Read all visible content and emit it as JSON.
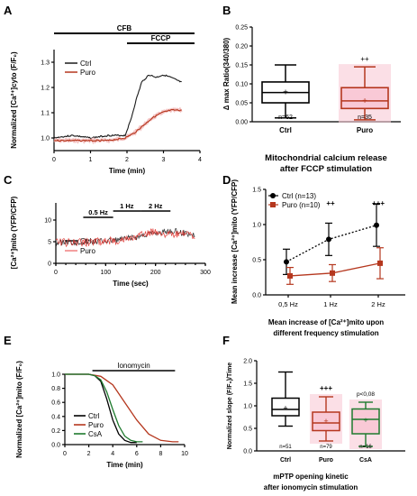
{
  "panels": {
    "A": "A",
    "B": "B",
    "C": "C",
    "D": "D",
    "E": "E",
    "F": "F"
  },
  "colors": {
    "ctrl": "#1a1a1a",
    "puro": "#b5371e",
    "puro_light": "#f4c4c4",
    "csa": "#1e7a2e",
    "pink": "#f9c9d6",
    "fade": "#f08080"
  },
  "captions": {
    "B": [
      "Mitochondrial calcium release",
      "after FCCP stimulation"
    ],
    "D": [
      "Mean increase of [Ca²⁺]mito upon",
      "different frequency stimulation"
    ],
    "F": [
      "mPTP opening kinetic",
      "after ionomycin stimulation"
    ]
  },
  "chart_data": [
    {
      "panel": "A",
      "type": "line",
      "xlabel": "Time (min)",
      "ylabel": "Normalized [Ca²⁺]cyto (F/F₀)",
      "xlim": [
        0,
        4
      ],
      "ylim": [
        0.95,
        1.35
      ],
      "xticks": [
        "0",
        "1",
        "2",
        "3",
        "4"
      ],
      "yticks": [
        "1.0",
        "1.1",
        "1.2",
        "1.3"
      ],
      "bars": [
        {
          "label": "CFB",
          "x": [
            0,
            3.85
          ]
        },
        {
          "label": "FCCP",
          "x": [
            2.0,
            3.85
          ]
        }
      ],
      "series": [
        {
          "name": "Ctrl",
          "x": [
            0,
            0.5,
            1,
            1.5,
            1.95,
            2.1,
            2.25,
            2.4,
            2.6,
            2.8,
            3,
            3.2,
            3.5
          ],
          "y": [
            1.0,
            1.01,
            1.0,
            1.01,
            1.01,
            1.07,
            1.15,
            1.22,
            1.25,
            1.24,
            1.25,
            1.24,
            1.22
          ]
        },
        {
          "name": "Puro",
          "x": [
            0,
            0.5,
            1,
            1.5,
            1.95,
            2.2,
            2.45,
            2.7,
            2.95,
            3.2,
            3.5
          ],
          "y": [
            0.99,
            0.99,
            0.99,
            0.99,
            1.0,
            1.02,
            1.05,
            1.08,
            1.1,
            1.11,
            1.11
          ]
        }
      ]
    },
    {
      "panel": "B",
      "type": "box",
      "ylabel": "Δ max Ratio(340/380)",
      "ylim": [
        0,
        0.25
      ],
      "yticks": [
        "0.00",
        "0.05",
        "0.10",
        "0.15",
        "0.20",
        "0.25"
      ],
      "categories": [
        "Ctrl",
        "Puro"
      ],
      "n": [
        "n=62",
        "n=35"
      ],
      "sig": [
        "",
        "++"
      ],
      "boxes": [
        {
          "min": 0.01,
          "q1": 0.05,
          "median": 0.077,
          "q3": 0.105,
          "max": 0.15,
          "mean": 0.077
        },
        {
          "min": 0.005,
          "q1": 0.035,
          "median": 0.055,
          "q3": 0.09,
          "max": 0.145,
          "mean": 0.055
        }
      ]
    },
    {
      "panel": "C",
      "type": "line",
      "xlabel": "Time (sec)",
      "ylabel": "[Ca²⁺]mito (YFP/CFP)",
      "xlim": [
        0,
        300
      ],
      "ylim": [
        0,
        15
      ],
      "xticks": [
        "0",
        "100",
        "200",
        "300"
      ],
      "yticks": [
        "0",
        "5",
        "10"
      ],
      "bars": [
        {
          "label": "0.5 Hz",
          "x": [
            55,
            115
          ]
        },
        {
          "label": "1 Hz",
          "x": [
            115,
            170
          ]
        },
        {
          "label": "2 Hz",
          "x": [
            170,
            230
          ]
        }
      ],
      "series": [
        {
          "name": "Ctrl",
          "x": [
            0,
            50,
            100,
            130,
            160,
            185,
            200,
            230,
            260,
            280
          ],
          "y": [
            4.8,
            4.9,
            5.2,
            5.5,
            6,
            6.8,
            7,
            7.5,
            7,
            6.5
          ]
        },
        {
          "name": "Puro",
          "x": [
            0,
            50,
            100,
            130,
            160,
            185,
            200,
            230,
            260,
            280
          ],
          "y": [
            4.8,
            4.8,
            5.1,
            5.4,
            6,
            7,
            7.5,
            6.5,
            6.8,
            6.3
          ]
        }
      ]
    },
    {
      "panel": "D",
      "type": "line",
      "xlabel": "",
      "ylabel": "Mean increase [Ca²⁺]mito (YFP/CFP)",
      "categories": [
        "0,5 Hz",
        "1 Hz",
        "2 Hz"
      ],
      "ylim": [
        0,
        1.5
      ],
      "yticks": [
        "0.0",
        "0.5",
        "1.0",
        "1.5"
      ],
      "sig": [
        "",
        "++",
        "+++"
      ],
      "series": [
        {
          "name": "Ctrl (n=13)",
          "values": [
            0.47,
            0.79,
            0.99
          ],
          "err": [
            0.18,
            0.23,
            0.3
          ]
        },
        {
          "name": "Puro (n=10)",
          "values": [
            0.27,
            0.31,
            0.45
          ],
          "err": [
            0.12,
            0.12,
            0.22
          ]
        }
      ]
    },
    {
      "panel": "E",
      "type": "line",
      "xlabel": "Time (min)",
      "ylabel": "Normalized [Ca²⁺]mito (F/F₀)",
      "xlim": [
        0,
        10
      ],
      "ylim": [
        0,
        1.0
      ],
      "xticks": [
        "0",
        "2",
        "4",
        "6",
        "8",
        "10"
      ],
      "yticks": [
        "0.0",
        "0.2",
        "0.4",
        "0.6",
        "0.8",
        "1.0"
      ],
      "bars": [
        {
          "label": "Ionomycin",
          "x": [
            2.3,
            9.2
          ]
        }
      ],
      "series": [
        {
          "name": "Ctrl",
          "x": [
            0,
            2,
            2.5,
            3,
            3.5,
            4,
            4.5,
            5,
            5.5,
            6
          ],
          "y": [
            1.0,
            1.0,
            0.98,
            0.9,
            0.65,
            0.35,
            0.15,
            0.06,
            0.03,
            0.03
          ]
        },
        {
          "name": "Puro",
          "x": [
            0,
            2,
            3,
            4,
            5,
            6,
            7,
            8,
            9,
            9.5
          ],
          "y": [
            1.0,
            1.0,
            0.97,
            0.85,
            0.6,
            0.35,
            0.15,
            0.06,
            0.04,
            0.04
          ]
        },
        {
          "name": "CsA",
          "x": [
            0,
            2,
            2.5,
            3,
            3.5,
            4,
            4.5,
            5,
            5.5,
            6,
            6.5
          ],
          "y": [
            1.0,
            1.0,
            0.98,
            0.92,
            0.75,
            0.5,
            0.27,
            0.12,
            0.06,
            0.04,
            0.04
          ]
        }
      ]
    },
    {
      "panel": "F",
      "type": "box",
      "ylabel": "Normalized slope (F/F₀)/Time",
      "ylim": [
        0,
        2.0
      ],
      "yticks": [
        "0.0",
        "0.5",
        "1.0",
        "1.5",
        "2.0"
      ],
      "categories": [
        "Ctrl",
        "Puro",
        "CsA"
      ],
      "n": [
        "n=51",
        "n=79",
        "n=16"
      ],
      "sig": [
        "",
        "+++",
        "p<0,08"
      ],
      "boxes": [
        {
          "min": 0.55,
          "q1": 0.78,
          "median": 0.92,
          "q3": 1.17,
          "max": 1.75,
          "mean": 0.95
        },
        {
          "min": 0.22,
          "q1": 0.45,
          "median": 0.62,
          "q3": 0.86,
          "max": 1.2,
          "mean": 0.66
        },
        {
          "min": 0.1,
          "q1": 0.38,
          "median": 0.7,
          "q3": 0.93,
          "max": 1.08,
          "mean": 0.68
        }
      ]
    }
  ]
}
